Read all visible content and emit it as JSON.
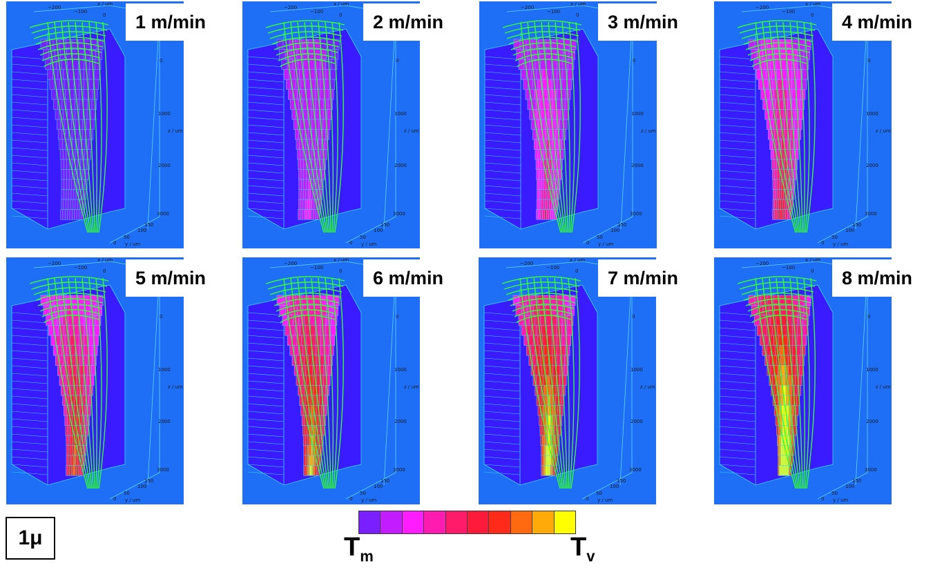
{
  "panels": [
    {
      "speed_label": "1 m/min",
      "level": 0
    },
    {
      "speed_label": "2 m/min",
      "level": 1
    },
    {
      "speed_label": "3 m/min",
      "level": 2
    },
    {
      "speed_label": "4 m/min",
      "level": 3
    },
    {
      "speed_label": "5 m/min",
      "level": 4
    },
    {
      "speed_label": "6 m/min",
      "level": 5
    },
    {
      "speed_label": "7 m/min",
      "level": 6
    },
    {
      "speed_label": "8 m/min",
      "level": 7
    }
  ],
  "axes": {
    "x_label": "x / um",
    "x_ticks": [
      "−200",
      "−100",
      "0"
    ],
    "z_label": "z / um",
    "z_ticks": [
      "0",
      "1000",
      "2000",
      "3000"
    ],
    "y_label": "y / um",
    "y_ticks": [
      "0",
      "50",
      "100",
      "150"
    ]
  },
  "legend": {
    "colors": [
      "#7a1fff",
      "#c21cff",
      "#ff1cff",
      "#ff1ab0",
      "#ff1a6a",
      "#ff1a3c",
      "#ff2a1a",
      "#ff6a10",
      "#ffaa08",
      "#ffff00"
    ],
    "min_label": "T",
    "min_sub": "m",
    "max_label": "T",
    "max_sub": "v"
  },
  "material_label": "1μ",
  "colors": {
    "background_panel": "#1e6ff5",
    "cold_mesh": "#3a1aff",
    "mesh_lines": "#33ddff",
    "beam_mesh": "#33ff33"
  }
}
